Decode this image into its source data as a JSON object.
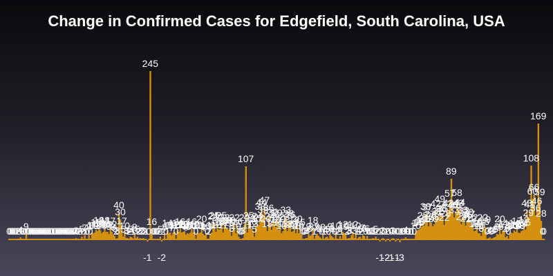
{
  "chart_data": {
    "type": "bar",
    "title": "Change in Confirmed Cases for Edgefield, South Carolina, USA",
    "xlabel": "",
    "ylabel": "",
    "ylim": [
      -6,
      258
    ],
    "grid": false,
    "legend": "none",
    "bar_color": "#d4900f",
    "label_color": "#ffffff",
    "values": [
      0,
      0,
      0,
      0,
      0,
      0,
      2,
      0,
      4,
      0,
      0,
      0,
      9,
      0,
      0,
      0,
      0,
      0,
      0,
      0,
      0,
      0,
      0,
      0,
      0,
      0,
      0,
      0,
      0,
      0,
      0,
      1,
      0,
      0,
      0,
      0,
      0,
      0,
      0,
      0,
      0,
      0,
      0,
      0,
      0,
      0,
      0,
      3,
      0,
      2,
      0,
      5,
      0,
      7,
      1,
      0,
      8,
      0,
      11,
      10,
      11,
      15,
      13,
      18,
      14,
      10,
      12,
      18,
      12,
      12,
      9,
      17,
      12,
      8,
      6,
      2,
      3,
      40,
      30,
      17,
      5,
      10,
      3,
      3,
      2,
      5,
      4,
      1,
      8,
      3,
      5,
      2,
      3,
      2,
      3,
      2,
      1,
      -1,
      0,
      245,
      16,
      0,
      0,
      0,
      0,
      2,
      5,
      -2,
      2,
      8,
      0,
      14,
      10,
      11,
      7,
      11,
      12,
      0,
      14,
      12,
      16,
      11,
      12,
      13,
      8,
      10,
      9,
      11,
      16,
      11,
      12,
      0,
      10,
      10,
      11,
      20,
      9,
      7,
      10,
      0,
      2,
      9,
      11,
      24,
      25,
      12,
      22,
      15,
      16,
      25,
      11,
      22,
      18,
      18,
      15,
      18,
      6,
      14,
      22,
      10,
      16,
      5,
      0,
      0,
      3,
      22,
      107,
      11,
      25,
      20,
      16,
      13,
      5,
      20,
      24,
      22,
      38,
      44,
      33,
      47,
      20,
      13,
      36,
      24,
      15,
      30,
      26,
      19,
      29,
      15,
      20,
      10,
      13,
      23,
      33,
      13,
      28,
      26,
      12,
      13,
      18,
      10,
      20,
      10,
      15,
      8,
      0,
      0,
      3,
      3,
      9,
      6,
      8,
      18,
      1,
      7,
      9,
      6,
      4,
      0,
      8,
      1,
      4,
      5,
      0,
      9,
      6,
      4,
      0,
      10,
      2,
      2,
      6,
      1,
      12,
      10,
      9,
      2,
      3,
      3,
      7,
      12,
      3,
      10,
      1,
      4,
      5,
      2,
      7,
      6,
      0,
      6,
      0,
      0,
      0,
      3,
      1,
      5,
      2,
      0,
      -1,
      2,
      3,
      0,
      -2,
      2,
      0,
      -1,
      0,
      3,
      0,
      -1,
      0,
      0,
      -3,
      1,
      0,
      0,
      4,
      0,
      0,
      1,
      0,
      1,
      0,
      10,
      14,
      15,
      16,
      19,
      25,
      21,
      38,
      37,
      20,
      27,
      25,
      20,
      23,
      42,
      31,
      32,
      49,
      35,
      35,
      22,
      28,
      42,
      43,
      57,
      89,
      40,
      33,
      40,
      58,
      43,
      44,
      23,
      33,
      32,
      21,
      26,
      30,
      27,
      20,
      22,
      13,
      14,
      16,
      10,
      10,
      6,
      22,
      16,
      19,
      0,
      3,
      4,
      0,
      3,
      4,
      5,
      9,
      8,
      20,
      9,
      14,
      12,
      4,
      6,
      0,
      9,
      11,
      10,
      14,
      12,
      17,
      11,
      10,
      13,
      14,
      19,
      15,
      43,
      29,
      41,
      108,
      60,
      66,
      36,
      46,
      169,
      59,
      28,
      0,
      0
    ]
  }
}
